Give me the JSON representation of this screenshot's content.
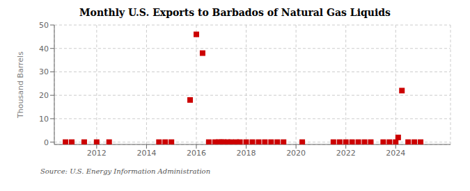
{
  "chart_data": {
    "type": "scatter",
    "title": "Monthly U.S. Exports to Barbados of Natural Gas Liquids",
    "ylabel": "Thousand Barrels",
    "annotation": "Source: U.S. Energy Information Administration",
    "x": [
      2010.75,
      2011.0,
      2011.5,
      2012.0,
      2012.5,
      2014.5,
      2014.75,
      2015.0,
      2015.75,
      2016.0,
      2016.25,
      2016.5,
      2016.75,
      2016.9,
      2017.0,
      2017.1,
      2017.25,
      2017.4,
      2017.6,
      2017.75,
      2018.0,
      2018.25,
      2018.5,
      2018.75,
      2019.0,
      2019.25,
      2019.5,
      2020.25,
      2021.5,
      2021.75,
      2022.0,
      2022.25,
      2022.5,
      2022.75,
      2023.0,
      2023.5,
      2023.75,
      2024.0,
      2024.1,
      2024.25,
      2024.5,
      2024.75,
      2025.0
    ],
    "values": [
      0,
      0,
      0,
      0,
      0,
      0,
      0,
      0,
      18.0,
      46.0,
      38.0,
      0,
      0,
      0,
      0,
      0,
      0,
      0,
      0,
      0,
      0,
      0,
      0,
      0,
      0,
      0,
      0,
      0,
      0,
      0,
      0,
      0,
      0,
      0,
      0,
      0,
      0,
      0,
      2.0,
      22.0,
      0,
      0,
      0
    ],
    "color": "#cc0000",
    "marker": "square",
    "xlim": [
      2010.3,
      2026.2
    ],
    "xticks": [
      2012,
      2014,
      2016,
      2018,
      2020,
      2022,
      2024
    ],
    "ylim": [
      -1,
      50
    ],
    "yticks": [
      0,
      10,
      20,
      30,
      40,
      50
    ],
    "grid": true
  }
}
